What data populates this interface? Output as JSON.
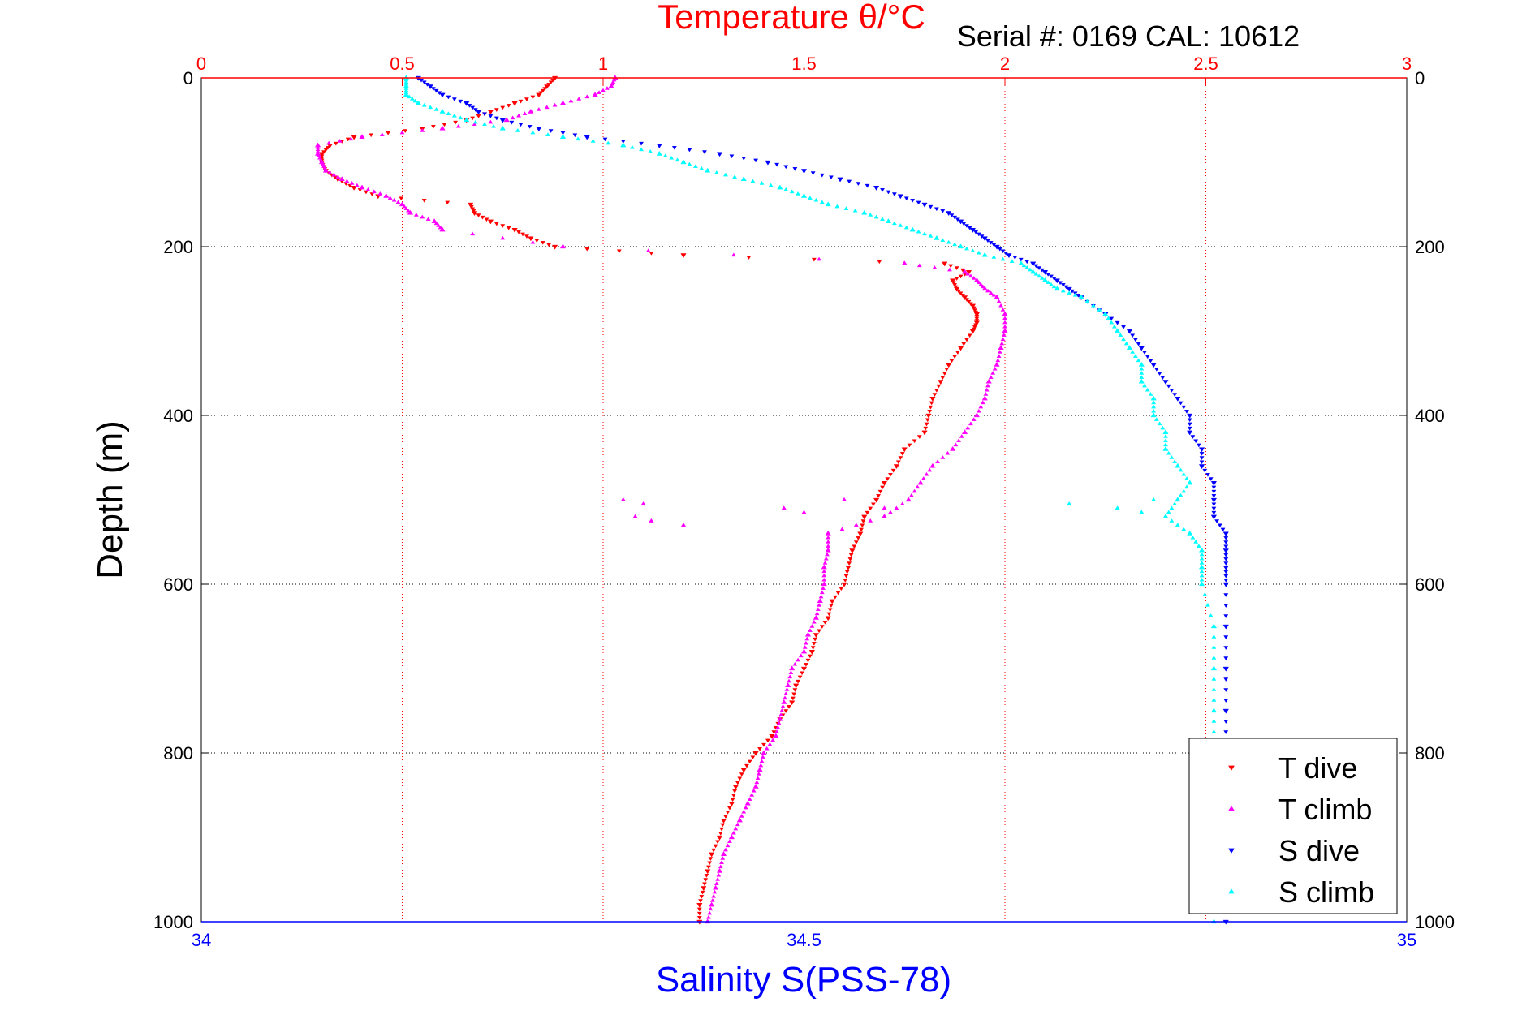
{
  "chart_data": {
    "type": "scatter",
    "title": "Temperature θ/°C",
    "annotation": "Serial #: 0169 CAL: 10612",
    "ylabel": "Depth (m)",
    "xlabel": "Salinity S(PSS-78)",
    "ylim": [
      1000,
      0
    ],
    "y_reversed": true,
    "xlim_bottom": [
      34,
      35
    ],
    "xlim_top": [
      0,
      3
    ],
    "y_ticks": [
      "0",
      "200",
      "400",
      "600",
      "800",
      "1000"
    ],
    "x_bottom_ticks": [
      "34",
      "34.5",
      "35"
    ],
    "x_top_ticks": [
      "0",
      "0.5",
      "1",
      "1.5",
      "2",
      "2.5",
      "3"
    ],
    "grid": true,
    "legend_position": "bottom-right",
    "colors": {
      "temperature_axis": "#ff0000",
      "salinity_axis": "#0000ff",
      "grid": "#000000",
      "temp_grid": "#ff0000",
      "legend_border": "#000000"
    },
    "series": [
      {
        "name": "T dive",
        "axis": "temperature",
        "marker": "triangle-down",
        "color": "#ff0000",
        "depth": [
          0,
          10,
          20,
          30,
          40,
          50,
          60,
          70,
          80,
          90,
          100,
          110,
          120,
          130,
          140,
          150,
          160,
          170,
          180,
          190,
          200,
          210,
          220,
          230,
          240,
          250,
          260,
          270,
          280,
          290,
          300,
          320,
          340,
          360,
          380,
          400,
          420,
          440,
          460,
          480,
          500,
          520,
          540,
          560,
          580,
          600,
          620,
          640,
          660,
          680,
          700,
          720,
          740,
          760,
          780,
          800,
          820,
          840,
          860,
          880,
          900,
          920,
          940,
          960,
          980,
          1000
        ],
        "values": [
          0.88,
          0.86,
          0.84,
          0.78,
          0.72,
          0.66,
          0.55,
          0.38,
          0.32,
          0.3,
          0.3,
          0.31,
          0.34,
          0.38,
          0.44,
          0.67,
          0.68,
          0.72,
          0.78,
          0.82,
          0.88,
          1.2,
          1.85,
          1.91,
          1.87,
          1.88,
          1.9,
          1.92,
          1.93,
          1.93,
          1.92,
          1.89,
          1.86,
          1.84,
          1.82,
          1.81,
          1.8,
          1.75,
          1.73,
          1.7,
          1.68,
          1.65,
          1.64,
          1.62,
          1.61,
          1.6,
          1.57,
          1.56,
          1.53,
          1.52,
          1.5,
          1.48,
          1.47,
          1.44,
          1.42,
          1.38,
          1.35,
          1.33,
          1.32,
          1.3,
          1.29,
          1.27,
          1.26,
          1.25,
          1.24,
          1.24
        ]
      },
      {
        "name": "T climb",
        "axis": "temperature",
        "marker": "triangle-up",
        "color": "#ff00ff",
        "depth": [
          0,
          10,
          20,
          30,
          40,
          50,
          60,
          70,
          80,
          90,
          100,
          110,
          120,
          130,
          140,
          150,
          160,
          170,
          180,
          200,
          220,
          230,
          240,
          250,
          260,
          280,
          300,
          320,
          340,
          360,
          380,
          400,
          420,
          440,
          460,
          480,
          500,
          520,
          540,
          560,
          580,
          600,
          620,
          640,
          660,
          680,
          700,
          720,
          740,
          760,
          780,
          800,
          820,
          840,
          860,
          880,
          900,
          920,
          940,
          960,
          980,
          1000
        ],
        "values": [
          1.03,
          1.02,
          0.98,
          0.9,
          0.82,
          0.76,
          0.6,
          0.4,
          0.29,
          0.29,
          0.3,
          0.31,
          0.35,
          0.4,
          0.46,
          0.5,
          0.52,
          0.58,
          0.6,
          0.9,
          1.75,
          1.9,
          1.93,
          1.95,
          1.98,
          2.0,
          2.0,
          1.99,
          1.98,
          1.96,
          1.95,
          1.93,
          1.9,
          1.87,
          1.82,
          1.79,
          1.76,
          1.7,
          1.56,
          1.56,
          1.55,
          1.55,
          1.54,
          1.53,
          1.51,
          1.5,
          1.47,
          1.46,
          1.45,
          1.44,
          1.43,
          1.4,
          1.39,
          1.38,
          1.36,
          1.34,
          1.32,
          1.3,
          1.29,
          1.28,
          1.27,
          1.26
        ]
      },
      {
        "name": "S dive",
        "axis": "salinity",
        "marker": "triangle-down",
        "color": "#0000ff",
        "depth": [
          0,
          10,
          20,
          30,
          40,
          50,
          60,
          70,
          80,
          90,
          100,
          110,
          120,
          130,
          140,
          150,
          160,
          170,
          180,
          190,
          200,
          210,
          220,
          230,
          240,
          250,
          260,
          280,
          300,
          320,
          340,
          360,
          380,
          400,
          420,
          440,
          460,
          480,
          500,
          520,
          540,
          560,
          580,
          600,
          650,
          700,
          750,
          800,
          850,
          900,
          950,
          1000
        ],
        "values": [
          34.18,
          34.19,
          34.2,
          34.22,
          34.23,
          34.25,
          34.28,
          34.32,
          34.38,
          34.43,
          34.47,
          34.5,
          34.53,
          34.56,
          34.58,
          34.6,
          34.62,
          34.63,
          34.64,
          34.65,
          34.66,
          34.67,
          34.69,
          34.7,
          34.71,
          34.72,
          34.73,
          34.75,
          34.77,
          34.78,
          34.79,
          34.8,
          34.81,
          34.82,
          34.82,
          34.83,
          34.83,
          34.84,
          34.84,
          34.84,
          34.85,
          34.85,
          34.85,
          34.85,
          34.85,
          34.85,
          34.85,
          34.85,
          34.85,
          34.85,
          34.85,
          34.85
        ]
      },
      {
        "name": "S climb",
        "axis": "salinity",
        "marker": "triangle-up",
        "color": "#00ffff",
        "depth": [
          0,
          10,
          20,
          30,
          40,
          50,
          60,
          70,
          80,
          90,
          100,
          110,
          120,
          130,
          140,
          150,
          160,
          170,
          180,
          190,
          200,
          210,
          220,
          230,
          240,
          250,
          260,
          280,
          300,
          320,
          340,
          360,
          380,
          400,
          420,
          440,
          460,
          480,
          500,
          520,
          540,
          560,
          580,
          600,
          650,
          700,
          750,
          800,
          850,
          900,
          950,
          1000
        ],
        "values": [
          34.17,
          34.17,
          34.17,
          34.18,
          34.2,
          34.22,
          34.25,
          34.3,
          34.35,
          34.38,
          34.4,
          34.42,
          34.45,
          34.48,
          34.5,
          34.52,
          34.55,
          34.57,
          34.59,
          34.61,
          34.63,
          34.65,
          34.68,
          34.69,
          34.7,
          34.71,
          34.73,
          34.75,
          34.76,
          34.77,
          34.78,
          34.78,
          34.79,
          34.79,
          34.8,
          34.8,
          34.81,
          34.82,
          34.81,
          34.8,
          34.82,
          34.83,
          34.83,
          34.83,
          34.84,
          34.84,
          34.84,
          34.84,
          34.84,
          34.84,
          34.84,
          34.84
        ]
      }
    ],
    "outliers": {
      "T climb": {
        "depth": [
          500,
          505,
          510,
          515,
          520,
          525,
          530,
          500,
          510
        ],
        "values": [
          1.05,
          1.1,
          1.45,
          1.5,
          1.08,
          1.12,
          1.2,
          1.6,
          1.7
        ]
      },
      "S climb": {
        "depth": [
          505,
          510,
          515,
          520,
          500
        ],
        "values": [
          34.72,
          34.76,
          34.78,
          34.8,
          34.79
        ]
      }
    }
  }
}
